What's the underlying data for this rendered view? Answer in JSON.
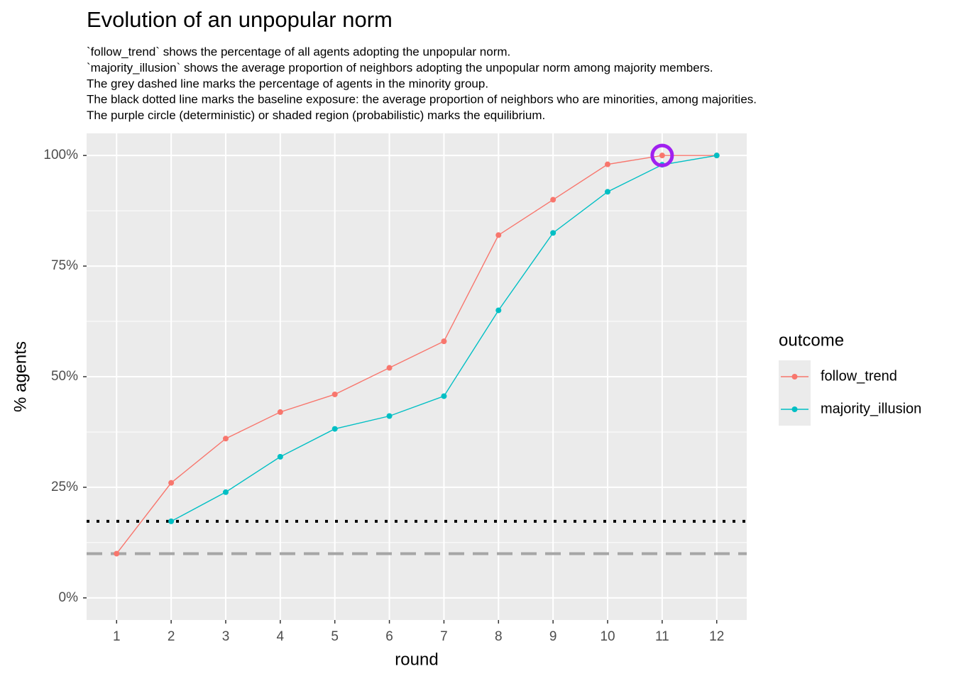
{
  "chart_data": {
    "type": "line",
    "title": "Evolution of an unpopular norm",
    "subtitle": [
      "`follow_trend` shows the percentage of all agents adopting the unpopular norm.",
      "`majority_illusion` shows the average proportion of neighbors adopting the unpopular norm among majority members.",
      "The grey dashed line marks the percentage of agents in the minority group.",
      "The black dotted line marks the baseline exposure: the average proportion of neighbors who are minorities, among majorities.",
      "The purple circle (deterministic) or shaded region (probabilistic) marks the equilibrium."
    ],
    "x_label": "round",
    "y_label": "% agents",
    "legend_title": "outcome",
    "x": [
      1,
      2,
      3,
      4,
      5,
      6,
      7,
      8,
      9,
      10,
      11,
      12
    ],
    "series": [
      {
        "name": "follow_trend",
        "color": "#F8766D",
        "values": [
          10,
          26,
          36,
          42,
          46,
          52,
          58,
          82,
          90,
          98,
          100,
          100
        ]
      },
      {
        "name": "majority_illusion",
        "color": "#00BFC4",
        "values": [
          null,
          17.3,
          23.9,
          31.9,
          38.2,
          41.1,
          45.6,
          65,
          82.5,
          91.8,
          97.9,
          100
        ]
      }
    ],
    "xlim": [
      0.45,
      12.55
    ],
    "ylim": [
      -5,
      105
    ],
    "xticks": [
      1,
      2,
      3,
      4,
      5,
      6,
      7,
      8,
      9,
      10,
      11,
      12
    ],
    "yticks": [
      {
        "value": 0,
        "label": "0%"
      },
      {
        "value": 25,
        "label": "25%"
      },
      {
        "value": 50,
        "label": "50%"
      },
      {
        "value": 75,
        "label": "75%"
      },
      {
        "value": 100,
        "label": "100%"
      }
    ],
    "y_minor_grid": [
      12.5,
      37.5,
      62.5,
      87.5
    ],
    "grid": true,
    "hlines": [
      {
        "value": 17.3,
        "style": "dotted",
        "color": "#000000"
      },
      {
        "value": 10,
        "style": "dashed",
        "color": "#a6a6a6"
      }
    ],
    "equilibrium": {
      "x": 11,
      "y": 100,
      "color": "#A020F0"
    }
  }
}
